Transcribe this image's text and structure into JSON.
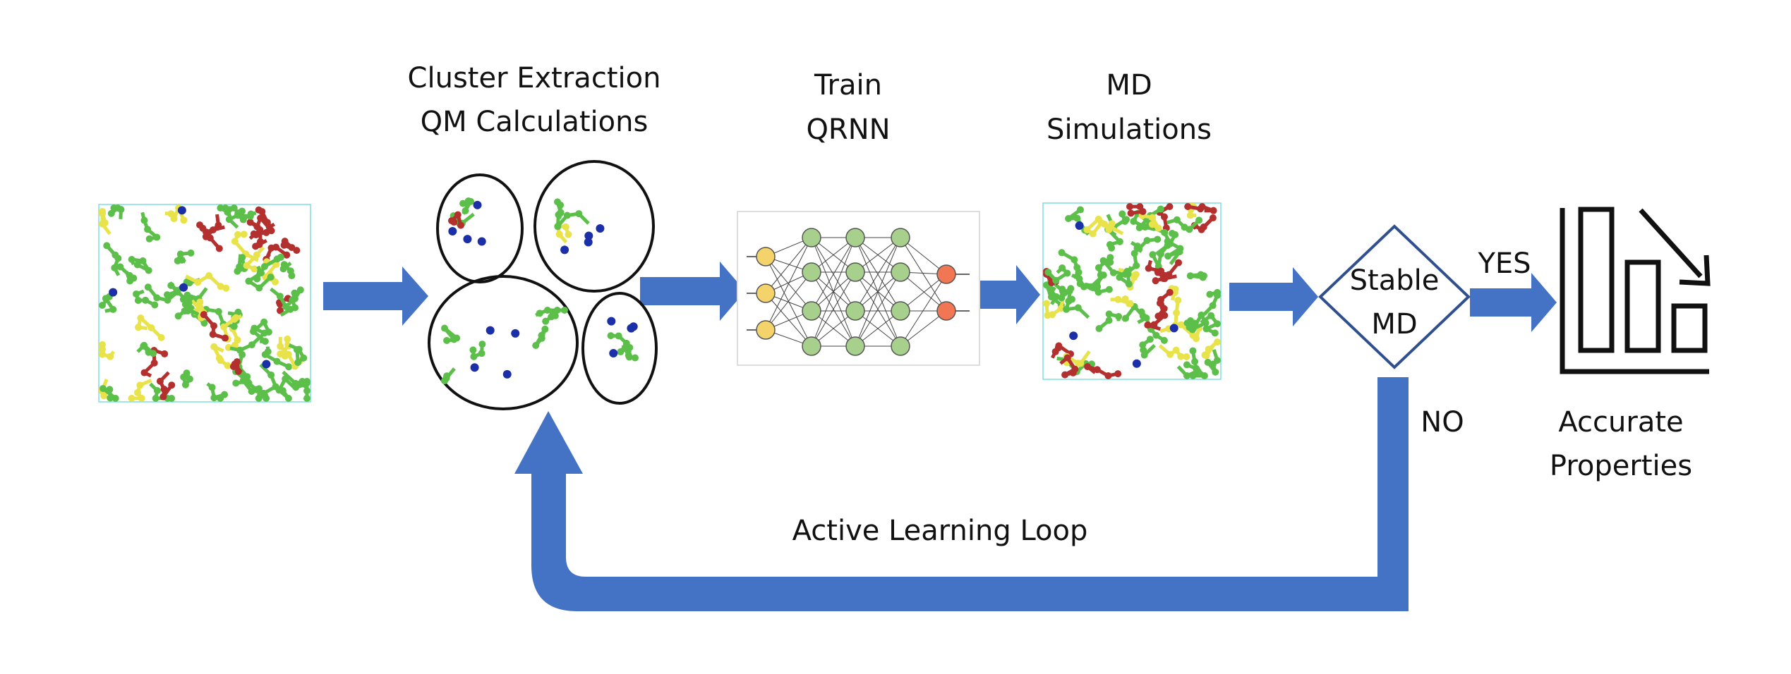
{
  "steps": {
    "clusters": [
      "Cluster Extraction",
      "QM Calculations"
    ],
    "train": [
      "Train",
      "QRNN"
    ],
    "md": [
      "MD",
      "Simulations"
    ]
  },
  "decision": {
    "label": [
      "Stable",
      "MD"
    ],
    "yes": "YES",
    "no": "NO"
  },
  "result": [
    "Accurate",
    "Properties"
  ],
  "loop": "Active Learning Loop"
}
